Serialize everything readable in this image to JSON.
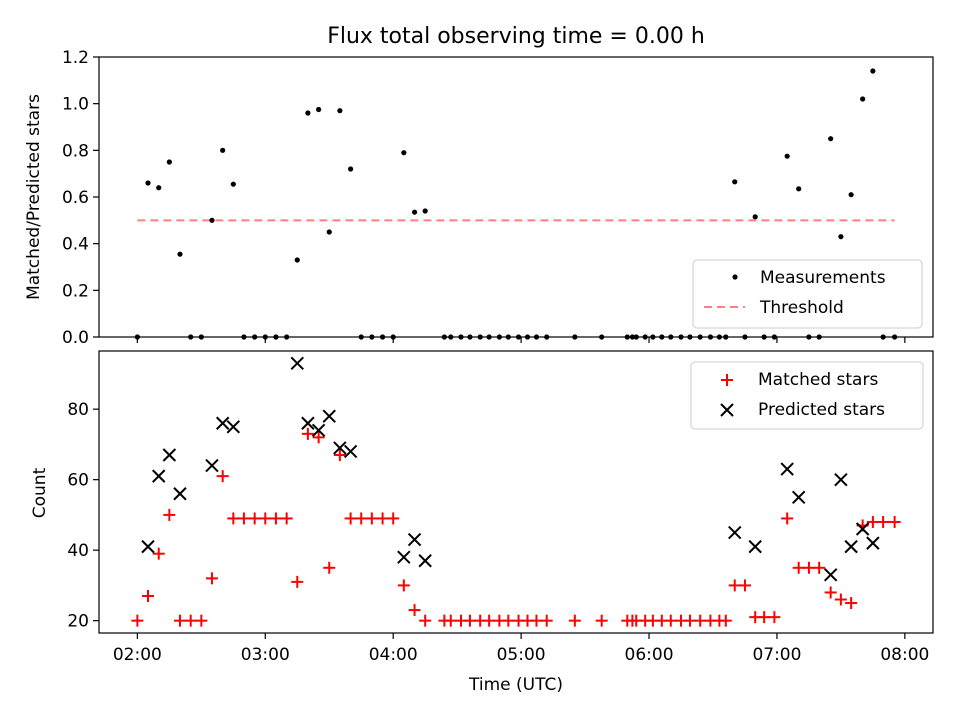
{
  "figure": {
    "title": "Flux total observing time = 0.00 h",
    "xlabel": "Time (UTC)",
    "x_ticks": [
      "02:00",
      "03:00",
      "04:00",
      "05:00",
      "06:00",
      "07:00",
      "08:00"
    ],
    "x_tick_values": [
      2,
      3,
      4,
      5,
      6,
      7,
      8
    ],
    "xlim": [
      1.7,
      8.22
    ]
  },
  "colors": {
    "measurements": "#000000",
    "threshold": "#ff7f7f",
    "matched": "#ff0000",
    "predicted": "#000000"
  },
  "chart_data": [
    {
      "type": "scatter",
      "ylabel": "Matched/Predicted stars",
      "ylim": [
        0,
        1.2
      ],
      "y_ticks": [
        "0.0",
        "0.2",
        "0.4",
        "0.6",
        "0.8",
        "1.0",
        "1.2"
      ],
      "legend_position": "lower-right",
      "series": [
        {
          "name": "Measurements",
          "kind": "points",
          "x": [
            2.0,
            2.083,
            2.167,
            2.25,
            2.333,
            2.417,
            2.5,
            2.583,
            2.667,
            2.75,
            2.833,
            2.917,
            3.0,
            3.083,
            3.167,
            3.25,
            3.333,
            3.417,
            3.5,
            3.583,
            3.667,
            3.75,
            3.833,
            3.917,
            4.0,
            4.083,
            4.167,
            4.25,
            4.4,
            4.45,
            4.53,
            4.6,
            4.68,
            4.75,
            4.83,
            4.9,
            4.98,
            5.05,
            5.12,
            5.2,
            5.42,
            5.63,
            5.83,
            5.87,
            5.9,
            5.97,
            6.03,
            6.1,
            6.17,
            6.25,
            6.32,
            6.4,
            6.48,
            6.55,
            6.6,
            6.67,
            6.75,
            6.83,
            6.9,
            6.98,
            7.08,
            7.17,
            7.25,
            7.33,
            7.42,
            7.5,
            7.58,
            7.67,
            7.75,
            7.83,
            7.92
          ],
          "y": [
            0.0,
            0.66,
            0.64,
            0.75,
            0.355,
            0.0,
            0.0,
            0.5,
            0.8,
            0.655,
            0.0,
            0.0,
            0.0,
            0.0,
            0.0,
            0.33,
            0.96,
            0.975,
            0.45,
            0.97,
            0.72,
            0.0,
            0.0,
            0.0,
            0.0,
            0.79,
            0.535,
            0.54,
            0.0,
            0.0,
            0.0,
            0.0,
            0.0,
            0.0,
            0.0,
            0.0,
            0.0,
            0.0,
            0.0,
            0.0,
            0.0,
            0.0,
            0.0,
            0.0,
            0.0,
            0.0,
            0.0,
            0.0,
            0.0,
            0.0,
            0.0,
            0.0,
            0.0,
            0.0,
            0.0,
            0.665,
            0.0,
            0.515,
            0.0,
            0.0,
            0.775,
            0.635,
            0.0,
            0.0,
            0.85,
            0.43,
            0.61,
            1.02,
            1.14,
            0.0,
            0.0
          ]
        },
        {
          "name": "Threshold",
          "kind": "dashed-line",
          "x": [
            2.0,
            7.92
          ],
          "y": [
            0.5,
            0.5
          ]
        }
      ]
    },
    {
      "type": "scatter",
      "ylabel": "Count",
      "ylim": [
        16.5,
        96.5
      ],
      "y_ticks": [
        "20",
        "40",
        "60",
        "80"
      ],
      "y_tick_values": [
        20,
        40,
        60,
        80
      ],
      "legend_position": "upper-right",
      "series": [
        {
          "name": "Matched stars",
          "marker": "+",
          "x": [
            2.0,
            2.083,
            2.167,
            2.25,
            2.333,
            2.417,
            2.5,
            2.583,
            2.667,
            2.75,
            2.833,
            2.917,
            3.0,
            3.083,
            3.167,
            3.25,
            3.333,
            3.417,
            3.5,
            3.583,
            3.667,
            3.75,
            3.833,
            3.917,
            4.0,
            4.083,
            4.167,
            4.25,
            4.4,
            4.45,
            4.53,
            4.6,
            4.68,
            4.75,
            4.83,
            4.9,
            4.98,
            5.05,
            5.12,
            5.2,
            5.42,
            5.63,
            5.83,
            5.87,
            5.9,
            5.97,
            6.03,
            6.1,
            6.17,
            6.25,
            6.32,
            6.4,
            6.48,
            6.55,
            6.6,
            6.67,
            6.75,
            6.83,
            6.9,
            6.98,
            7.08,
            7.17,
            7.25,
            7.33,
            7.42,
            7.5,
            7.58,
            7.67,
            7.75,
            7.83,
            7.92
          ],
          "y": [
            20,
            27,
            39,
            50,
            20,
            20,
            20,
            32,
            61,
            49,
            49,
            49,
            49,
            49,
            49,
            31,
            73,
            72,
            35,
            67,
            49,
            49,
            49,
            49,
            49,
            30,
            23,
            20,
            20,
            20,
            20,
            20,
            20,
            20,
            20,
            20,
            20,
            20,
            20,
            20,
            20,
            20,
            20,
            20,
            20,
            20,
            20,
            20,
            20,
            20,
            20,
            20,
            20,
            20,
            20,
            30,
            30,
            21,
            21,
            21,
            49,
            35,
            35,
            35,
            28,
            26,
            25,
            47,
            48,
            48,
            48
          ]
        },
        {
          "name": "Predicted stars",
          "marker": "x",
          "x": [
            2.083,
            2.167,
            2.25,
            2.333,
            2.583,
            2.667,
            2.75,
            3.25,
            3.333,
            3.417,
            3.5,
            3.583,
            3.667,
            4.083,
            4.167,
            4.25,
            6.67,
            6.83,
            7.08,
            7.17,
            7.42,
            7.5,
            7.58,
            7.67,
            7.75
          ],
          "y": [
            41,
            61,
            67,
            56,
            64,
            76,
            75,
            93,
            76,
            74,
            78,
            69,
            68,
            38,
            43,
            37,
            45,
            41,
            63,
            55,
            33,
            60,
            41,
            46,
            42
          ]
        }
      ]
    }
  ]
}
